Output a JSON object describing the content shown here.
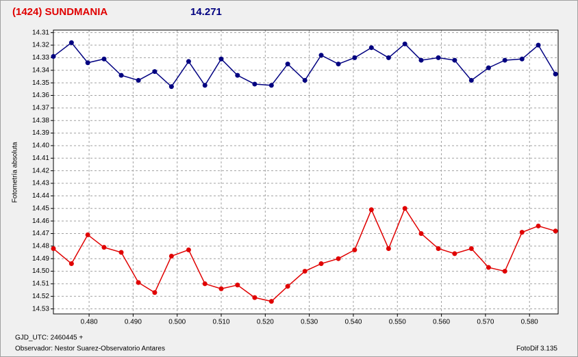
{
  "chart_data": {
    "type": "line",
    "title": "(1424) SUNDMANIA",
    "subtitle": "14.271",
    "ylabel": "Fotometría absoluta",
    "xlabel": "GJD_UTC: 2460445 +",
    "observer": "Observador: Nestor Suarez-Observatorio Antares",
    "software": "FotoDif 3.135",
    "grid": true,
    "xlim": [
      0.4719,
      0.5865
    ],
    "ylim": [
      14.534,
      14.308
    ],
    "xticks": [
      {
        "value": 0.48,
        "label": "0.480"
      },
      {
        "value": 0.49,
        "label": "0.490"
      },
      {
        "value": 0.5,
        "label": "0.500"
      },
      {
        "value": 0.51,
        "label": "0.510"
      },
      {
        "value": 0.52,
        "label": "0.520"
      },
      {
        "value": 0.53,
        "label": "0.530"
      },
      {
        "value": 0.54,
        "label": "0.540"
      },
      {
        "value": 0.55,
        "label": "0.550"
      },
      {
        "value": 0.56,
        "label": "0.560"
      },
      {
        "value": 0.57,
        "label": "0.570"
      },
      {
        "value": 0.58,
        "label": "0.580"
      }
    ],
    "yticks": [
      14.31,
      14.32,
      14.33,
      14.34,
      14.35,
      14.36,
      14.37,
      14.38,
      14.39,
      {
        "value": 14.4,
        "label": "14.40"
      },
      14.41,
      14.42,
      14.43,
      14.44,
      14.45,
      14.46,
      14.47,
      14.48,
      14.49,
      {
        "value": 14.5,
        "label": "14.50"
      },
      14.51,
      14.52,
      14.53
    ],
    "x": [
      0.4719,
      0.476,
      0.4797,
      0.4834,
      0.4873,
      0.4912,
      0.4949,
      0.4987,
      0.5026,
      0.5063,
      0.51,
      0.5137,
      0.5176,
      0.5214,
      0.5251,
      0.529,
      0.5327,
      0.5366,
      0.5403,
      0.5441,
      0.548,
      0.5517,
      0.5554,
      0.5593,
      0.563,
      0.5668,
      0.5707,
      0.5744,
      0.5783,
      0.582,
      0.5859
    ],
    "series": [
      {
        "color": "#000080",
        "values": [
          14.329,
          14.318,
          14.334,
          14.331,
          14.344,
          14.348,
          14.341,
          14.353,
          14.333,
          14.352,
          14.331,
          14.344,
          14.351,
          14.352,
          14.335,
          14.348,
          14.328,
          14.335,
          14.33,
          14.322,
          14.33,
          14.319,
          14.332,
          14.33,
          14.332,
          14.348,
          14.338,
          14.332,
          14.331,
          14.32,
          14.343
        ]
      },
      {
        "color": "#e00000",
        "values": [
          14.482,
          14.494,
          14.471,
          14.481,
          14.485,
          14.509,
          14.517,
          14.488,
          14.483,
          14.51,
          14.514,
          14.511,
          14.521,
          14.524,
          14.512,
          14.5,
          14.494,
          14.49,
          14.483,
          14.451,
          14.482,
          14.45,
          14.47,
          14.482,
          14.486,
          14.482,
          14.497,
          14.5,
          14.469,
          14.464,
          14.468
        ]
      }
    ]
  }
}
